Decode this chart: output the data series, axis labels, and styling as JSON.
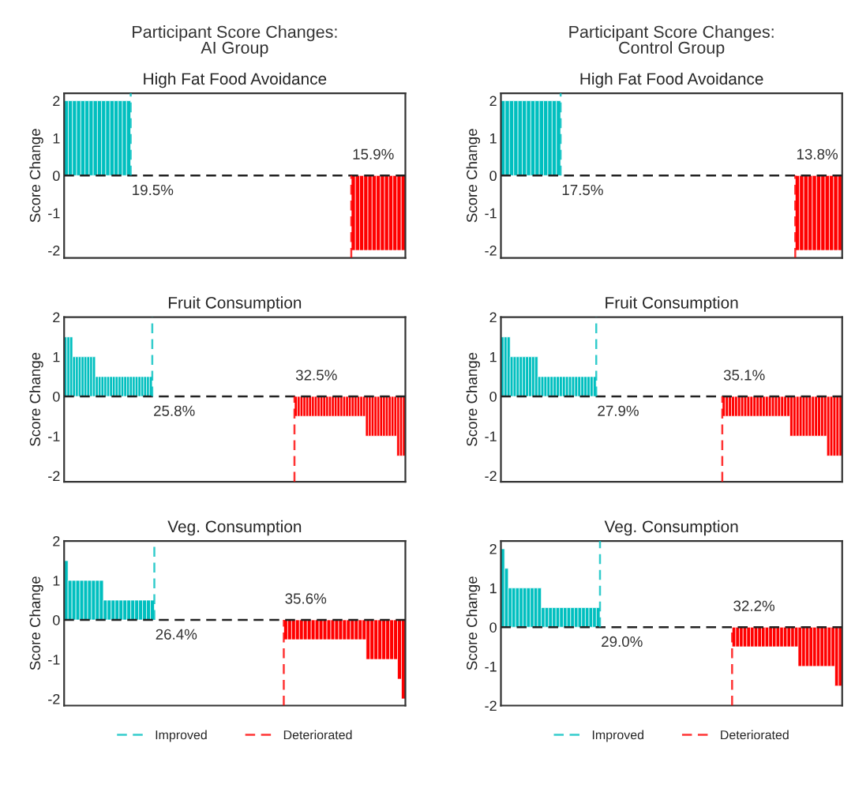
{
  "chart_data": [
    {
      "type": "bar",
      "title": "Participant Score Changes:\nAI Group",
      "subtitle": "High Fat Food Avoidance",
      "ylabel": "Score Change",
      "ylim": [
        -2.2,
        2.2
      ],
      "yticks": [
        -2,
        -1,
        0,
        1,
        2
      ],
      "tick_labels": "y",
      "grid": false,
      "categories": [
        null,
        null,
        null,
        null,
        null,
        null,
        null,
        null,
        null,
        null,
        null,
        null,
        null,
        null,
        null,
        null,
        null,
        null,
        null,
        null,
        null,
        null,
        null,
        null,
        null,
        null,
        null,
        null,
        null,
        null,
        null,
        null,
        null,
        null,
        null,
        null,
        null,
        null,
        null,
        null,
        null,
        null,
        null,
        null,
        null,
        null,
        null,
        null,
        null,
        null,
        null,
        null,
        null,
        null,
        null,
        null,
        null,
        null,
        null,
        null,
        null,
        null,
        null,
        null,
        null,
        null,
        null,
        null,
        null,
        null,
        null,
        null,
        null,
        null,
        null,
        null,
        null,
        null,
        null,
        null,
        null,
        null
      ],
      "series": [
        {
          "color": "#00bfbf",
          "values": [
            2,
            2,
            2,
            2,
            2,
            2,
            2,
            2,
            2,
            2,
            2,
            2,
            2,
            2,
            2,
            2,
            null,
            null,
            null,
            null,
            null,
            null,
            null,
            null,
            null,
            null,
            null,
            null,
            null,
            null,
            null,
            null,
            null,
            null,
            null,
            null,
            null,
            null,
            null,
            null,
            null,
            null,
            null,
            null,
            null,
            null,
            null,
            null,
            null,
            null,
            null,
            null,
            null,
            null,
            null,
            null,
            null,
            null,
            null,
            null,
            null,
            null,
            null,
            null,
            null,
            null,
            null,
            null,
            null,
            null,
            null,
            null,
            null,
            null,
            null,
            null,
            null,
            null,
            null,
            null,
            null,
            null
          ]
        },
        {
          "color": "#ff0000",
          "values": [
            null,
            null,
            null,
            null,
            null,
            null,
            null,
            null,
            null,
            null,
            null,
            null,
            null,
            null,
            null,
            null,
            null,
            null,
            null,
            null,
            null,
            null,
            null,
            null,
            null,
            null,
            null,
            null,
            null,
            null,
            null,
            null,
            null,
            null,
            null,
            null,
            null,
            null,
            null,
            null,
            null,
            null,
            null,
            null,
            null,
            null,
            null,
            null,
            null,
            null,
            null,
            null,
            null,
            null,
            null,
            null,
            null,
            null,
            null,
            null,
            null,
            null,
            null,
            null,
            null,
            null,
            null,
            null,
            null,
            -2,
            -2,
            -2,
            -2,
            -2,
            -2,
            -2,
            -2,
            -2,
            -2,
            -2,
            -2,
            -2
          ]
        }
      ],
      "ref_lines": [
        {
          "axis": "y",
          "value": 0,
          "color": "#222222",
          "line_style": "dashed"
        }
      ],
      "annotations": [
        "19.5%",
        "15.9%"
      ]
    },
    {
      "type": "bar",
      "title": "Participant Score Changes:\nControl Group",
      "subtitle": "High Fat Food Avoidance",
      "ylabel": "Score Change",
      "ylim": [
        -2.2,
        2.2
      ],
      "yticks": [
        -2,
        -1,
        0,
        1,
        2
      ],
      "tick_labels": "y",
      "grid": false,
      "categories": [
        null,
        null,
        null,
        null,
        null,
        null,
        null,
        null,
        null,
        null,
        null,
        null,
        null,
        null,
        null,
        null,
        null,
        null,
        null,
        null,
        null,
        null,
        null,
        null,
        null,
        null,
        null,
        null,
        null,
        null,
        null,
        null,
        null,
        null,
        null,
        null,
        null,
        null,
        null,
        null,
        null,
        null,
        null,
        null,
        null,
        null,
        null,
        null,
        null,
        null,
        null,
        null,
        null,
        null,
        null,
        null,
        null,
        null,
        null,
        null,
        null,
        null,
        null,
        null,
        null,
        null,
        null,
        null,
        null,
        null,
        null,
        null,
        null,
        null,
        null,
        null,
        null,
        null,
        null,
        null
      ],
      "series": [
        {
          "color": "#00bfbf",
          "values": [
            2,
            2,
            2,
            2,
            2,
            2,
            2,
            2,
            2,
            2,
            2,
            2,
            2,
            2,
            null,
            null,
            null,
            null,
            null,
            null,
            null,
            null,
            null,
            null,
            null,
            null,
            null,
            null,
            null,
            null,
            null,
            null,
            null,
            null,
            null,
            null,
            null,
            null,
            null,
            null,
            null,
            null,
            null,
            null,
            null,
            null,
            null,
            null,
            null,
            null,
            null,
            null,
            null,
            null,
            null,
            null,
            null,
            null,
            null,
            null,
            null,
            null,
            null,
            null,
            null,
            null,
            null,
            null,
            null,
            null,
            null,
            null,
            null,
            null,
            null,
            null,
            null,
            null,
            null,
            null
          ]
        },
        {
          "color": "#ff0000",
          "values": [
            null,
            null,
            null,
            null,
            null,
            null,
            null,
            null,
            null,
            null,
            null,
            null,
            null,
            null,
            null,
            null,
            null,
            null,
            null,
            null,
            null,
            null,
            null,
            null,
            null,
            null,
            null,
            null,
            null,
            null,
            null,
            null,
            null,
            null,
            null,
            null,
            null,
            null,
            null,
            null,
            null,
            null,
            null,
            null,
            null,
            null,
            null,
            null,
            null,
            null,
            null,
            null,
            null,
            null,
            null,
            null,
            null,
            null,
            null,
            null,
            null,
            null,
            null,
            null,
            null,
            null,
            null,
            null,
            null,
            -2,
            -2,
            -2,
            -2,
            -2,
            -2,
            -2,
            -2,
            -2,
            -2,
            -2
          ]
        }
      ],
      "ref_lines": [
        {
          "axis": "y",
          "value": 0,
          "color": "#222222",
          "line_style": "dashed"
        }
      ],
      "annotations": [
        "17.5%",
        "13.8%"
      ]
    },
    {
      "type": "bar",
      "title": "Fruit Consumption",
      "ylabel": "Score Change",
      "ylim": [
        -2.15,
        2
      ],
      "yticks": [
        -2,
        -1,
        0,
        1,
        2
      ],
      "tick_labels": "y",
      "grid": false,
      "categories": [
        null,
        null,
        null,
        null,
        null,
        null,
        null,
        null,
        null,
        null,
        null,
        null,
        null,
        null,
        null,
        null,
        null,
        null,
        null,
        null,
        null,
        null,
        null,
        null,
        null,
        null,
        null,
        null,
        null,
        null,
        null,
        null,
        null,
        null,
        null,
        null,
        null,
        null,
        null,
        null,
        null,
        null,
        null,
        null,
        null,
        null,
        null,
        null,
        null,
        null,
        null,
        null,
        null,
        null,
        null,
        null,
        null,
        null,
        null,
        null,
        null,
        null,
        null,
        null,
        null,
        null,
        null,
        null,
        null,
        null,
        null,
        null,
        null,
        null,
        null,
        null,
        null,
        null,
        null,
        null,
        null,
        null,
        null,
        null,
        null,
        null,
        null,
        null,
        null,
        null,
        null,
        null,
        null,
        null,
        null,
        null,
        null,
        null,
        null,
        null,
        null,
        null,
        null,
        null,
        null,
        null,
        null,
        null,
        null,
        null,
        null,
        null,
        null,
        null,
        null,
        null,
        null,
        null,
        null,
        null
      ],
      "series": [
        {
          "color": "#00bfbf",
          "values": [
            1.5,
            1.5,
            1.5,
            1,
            1,
            1,
            1,
            1,
            1,
            1,
            1,
            0.5,
            0.5,
            0.5,
            0.5,
            0.5,
            0.5,
            0.5,
            0.5,
            0.5,
            0.5,
            0.5,
            0.5,
            0.5,
            0.5,
            0.5,
            0.5,
            0.5,
            0.5,
            0.5,
            0.5,
            null,
            null,
            null,
            null,
            null,
            null,
            null,
            null,
            null,
            null,
            null,
            null,
            null,
            null,
            null,
            null,
            null,
            null,
            null,
            null,
            null,
            null,
            null,
            null,
            null,
            null,
            null,
            null,
            null,
            null,
            null,
            null,
            null,
            null,
            null,
            null,
            null,
            null,
            null,
            null,
            null,
            null,
            null,
            null,
            null,
            null,
            null,
            null,
            null,
            null,
            null,
            null,
            null,
            null,
            null,
            null,
            null,
            null,
            null,
            null,
            null,
            null,
            null,
            null,
            null,
            null,
            null,
            null,
            null,
            null,
            null,
            null,
            null,
            null,
            null,
            null,
            null,
            null,
            null,
            null,
            null,
            null,
            null,
            null,
            null,
            null,
            null,
            null,
            null
          ]
        },
        {
          "color": "#ff0000",
          "values": [
            null,
            null,
            null,
            null,
            null,
            null,
            null,
            null,
            null,
            null,
            null,
            null,
            null,
            null,
            null,
            null,
            null,
            null,
            null,
            null,
            null,
            null,
            null,
            null,
            null,
            null,
            null,
            null,
            null,
            null,
            null,
            null,
            null,
            null,
            null,
            null,
            null,
            null,
            null,
            null,
            null,
            null,
            null,
            null,
            null,
            null,
            null,
            null,
            null,
            null,
            null,
            null,
            null,
            null,
            null,
            null,
            null,
            null,
            null,
            null,
            null,
            null,
            null,
            null,
            null,
            null,
            null,
            null,
            null,
            null,
            null,
            null,
            null,
            null,
            null,
            null,
            null,
            null,
            null,
            null,
            null,
            -0.5,
            -0.5,
            -0.5,
            -0.5,
            -0.5,
            -0.5,
            -0.5,
            -0.5,
            -0.5,
            -0.5,
            -0.5,
            -0.5,
            -0.5,
            -0.5,
            -0.5,
            -0.5,
            -0.5,
            -0.5,
            -0.5,
            -0.5,
            -0.5,
            -0.5,
            -0.5,
            -0.5,
            -0.5,
            -1,
            -1,
            -1,
            -1,
            -1,
            -1,
            -1,
            -1,
            -1,
            -1,
            -1,
            -1.5,
            -1.5,
            -1.5
          ]
        }
      ],
      "ref_lines": [
        {
          "axis": "y",
          "value": 0,
          "color": "#222222",
          "line_style": "dashed"
        }
      ],
      "annotations": [
        "25.8%",
        "32.5%"
      ]
    },
    {
      "type": "bar",
      "title": "Fruit Consumption",
      "ylabel": "Score Change",
      "ylim": [
        -2.15,
        2
      ],
      "yticks": [
        -2,
        -1,
        0,
        1,
        2
      ],
      "tick_labels": "y",
      "grid": false,
      "categories": [
        null,
        null,
        null,
        null,
        null,
        null,
        null,
        null,
        null,
        null,
        null,
        null,
        null,
        null,
        null,
        null,
        null,
        null,
        null,
        null,
        null,
        null,
        null,
        null,
        null,
        null,
        null,
        null,
        null,
        null,
        null,
        null,
        null,
        null,
        null,
        null,
        null,
        null,
        null,
        null,
        null,
        null,
        null,
        null,
        null,
        null,
        null,
        null,
        null,
        null,
        null,
        null,
        null,
        null,
        null,
        null,
        null,
        null,
        null,
        null,
        null,
        null,
        null,
        null,
        null,
        null,
        null,
        null,
        null,
        null,
        null,
        null,
        null,
        null,
        null,
        null,
        null,
        null,
        null,
        null,
        null,
        null,
        null,
        null,
        null,
        null,
        null,
        null,
        null,
        null,
        null,
        null,
        null,
        null,
        null,
        null,
        null,
        null,
        null,
        null,
        null,
        null,
        null,
        null,
        null,
        null,
        null,
        null,
        null,
        null,
        null
      ],
      "series": [
        {
          "color": "#00bfbf",
          "values": [
            1.5,
            1.5,
            1.5,
            1,
            1,
            1,
            1,
            1,
            1,
            1,
            1,
            1,
            0.5,
            0.5,
            0.5,
            0.5,
            0.5,
            0.5,
            0.5,
            0.5,
            0.5,
            0.5,
            0.5,
            0.5,
            0.5,
            0.5,
            0.5,
            0.5,
            0.5,
            0.5,
            0.5,
            null,
            null,
            null,
            null,
            null,
            null,
            null,
            null,
            null,
            null,
            null,
            null,
            null,
            null,
            null,
            null,
            null,
            null,
            null,
            null,
            null,
            null,
            null,
            null,
            null,
            null,
            null,
            null,
            null,
            null,
            null,
            null,
            null,
            null,
            null,
            null,
            null,
            null,
            null,
            null,
            null,
            null,
            null,
            null,
            null,
            null,
            null,
            null,
            null,
            null,
            null,
            null,
            null,
            null,
            null,
            null,
            null,
            null,
            null,
            null,
            null,
            null,
            null,
            null,
            null,
            null,
            null,
            null,
            null,
            null,
            null,
            null,
            null,
            null,
            null,
            null,
            null,
            null,
            null,
            null
          ]
        },
        {
          "color": "#ff0000",
          "values": [
            null,
            null,
            null,
            null,
            null,
            null,
            null,
            null,
            null,
            null,
            null,
            null,
            null,
            null,
            null,
            null,
            null,
            null,
            null,
            null,
            null,
            null,
            null,
            null,
            null,
            null,
            null,
            null,
            null,
            null,
            null,
            null,
            null,
            null,
            null,
            null,
            null,
            null,
            null,
            null,
            null,
            null,
            null,
            null,
            null,
            null,
            null,
            null,
            null,
            null,
            null,
            null,
            null,
            null,
            null,
            null,
            null,
            null,
            null,
            null,
            null,
            null,
            null,
            null,
            null,
            null,
            null,
            null,
            null,
            null,
            null,
            null,
            -0.5,
            -0.5,
            -0.5,
            -0.5,
            -0.5,
            -0.5,
            -0.5,
            -0.5,
            -0.5,
            -0.5,
            -0.5,
            -0.5,
            -0.5,
            -0.5,
            -0.5,
            -0.5,
            -0.5,
            -0.5,
            -0.5,
            -0.5,
            -0.5,
            -0.5,
            -1,
            -1,
            -1,
            -1,
            -1,
            -1,
            -1,
            -1,
            -1,
            -1,
            -1,
            -1,
            -1.5,
            -1.5,
            -1.5,
            -1.5,
            -1.5
          ]
        }
      ],
      "ref_lines": [
        {
          "axis": "y",
          "value": 0,
          "color": "#222222",
          "line_style": "dashed"
        }
      ],
      "annotations": [
        "27.9%",
        "35.1%"
      ]
    },
    {
      "type": "bar",
      "title": "Veg. Consumption",
      "ylabel": "Score Change",
      "ylim": [
        -2.17,
        2
      ],
      "yticks": [
        -2,
        -1,
        0,
        1,
        2
      ],
      "tick_labels": "y",
      "grid": false,
      "legend": "bottom",
      "categories": [
        null,
        null,
        null,
        null,
        null,
        null,
        null,
        null,
        null,
        null,
        null,
        null,
        null,
        null,
        null,
        null,
        null,
        null,
        null,
        null,
        null,
        null,
        null,
        null,
        null,
        null,
        null,
        null,
        null,
        null,
        null,
        null,
        null,
        null,
        null,
        null,
        null,
        null,
        null,
        null,
        null,
        null,
        null,
        null,
        null,
        null,
        null,
        null,
        null,
        null,
        null,
        null,
        null,
        null,
        null,
        null,
        null,
        null,
        null,
        null,
        null,
        null,
        null,
        null,
        null,
        null,
        null,
        null,
        null,
        null,
        null,
        null,
        null,
        null,
        null,
        null,
        null,
        null,
        null,
        null,
        null,
        null,
        null,
        null,
        null,
        null,
        null
      ],
      "series": [
        {
          "name": "Improved",
          "color": "#00bfbf",
          "values": [
            1.5,
            1,
            1,
            1,
            1,
            1,
            1,
            1,
            1,
            1,
            0.5,
            0.5,
            0.5,
            0.5,
            0.5,
            0.5,
            0.5,
            0.5,
            0.5,
            0.5,
            0.5,
            0.5,
            0.5,
            null,
            null,
            null,
            null,
            null,
            null,
            null,
            null,
            null,
            null,
            null,
            null,
            null,
            null,
            null,
            null,
            null,
            null,
            null,
            null,
            null,
            null,
            null,
            null,
            null,
            null,
            null,
            null,
            null,
            null,
            null,
            null,
            null,
            null,
            null,
            null,
            null,
            null,
            null,
            null,
            null,
            null,
            null,
            null,
            null,
            null,
            null,
            null,
            null,
            null,
            null,
            null,
            null,
            null,
            null,
            null,
            null,
            null,
            null,
            null,
            null,
            null,
            null,
            null
          ]
        },
        {
          "name": "Deteriorated",
          "color": "#ff0000",
          "values": [
            null,
            null,
            null,
            null,
            null,
            null,
            null,
            null,
            null,
            null,
            null,
            null,
            null,
            null,
            null,
            null,
            null,
            null,
            null,
            null,
            null,
            null,
            null,
            null,
            null,
            null,
            null,
            null,
            null,
            null,
            null,
            null,
            null,
            null,
            null,
            null,
            null,
            null,
            null,
            null,
            null,
            null,
            null,
            null,
            null,
            null,
            null,
            null,
            null,
            null,
            null,
            null,
            null,
            null,
            null,
            null,
            -0.5,
            -0.5,
            -0.5,
            -0.5,
            -0.5,
            -0.5,
            -0.5,
            -0.5,
            -0.5,
            -0.5,
            -0.5,
            -0.5,
            -0.5,
            -0.5,
            -0.5,
            -0.5,
            -0.5,
            -0.5,
            -0.5,
            -0.5,
            -0.5,
            -1,
            -1,
            -1,
            -1,
            -1,
            -1,
            -1,
            -1,
            -1.5,
            -2
          ]
        }
      ],
      "ref_lines": [
        {
          "axis": "y",
          "value": 0,
          "color": "#222222",
          "line_style": "dashed"
        }
      ],
      "annotations": [
        "26.4%",
        "35.6%"
      ]
    },
    {
      "type": "bar",
      "title": "Veg. Consumption",
      "ylabel": "Score Change",
      "ylim": [
        -2,
        2.2
      ],
      "yticks": [
        -2,
        -1,
        0,
        1,
        2
      ],
      "tick_labels": "y",
      "grid": false,
      "legend": "bottom",
      "categories": [
        null,
        null,
        null,
        null,
        null,
        null,
        null,
        null,
        null,
        null,
        null,
        null,
        null,
        null,
        null,
        null,
        null,
        null,
        null,
        null,
        null,
        null,
        null,
        null,
        null,
        null,
        null,
        null,
        null,
        null,
        null,
        null,
        null,
        null,
        null,
        null,
        null,
        null,
        null,
        null,
        null,
        null,
        null,
        null,
        null,
        null,
        null,
        null,
        null,
        null,
        null,
        null,
        null,
        null,
        null,
        null,
        null,
        null,
        null,
        null,
        null,
        null,
        null,
        null,
        null,
        null,
        null,
        null,
        null,
        null,
        null,
        null,
        null,
        null,
        null,
        null,
        null,
        null,
        null,
        null,
        null,
        null,
        null,
        null,
        null,
        null,
        null,
        null,
        null,
        null,
        null,
        null,
        null
      ],
      "series": [
        {
          "name": "Improved",
          "color": "#00bfbf",
          "values": [
            2,
            1.5,
            1,
            1,
            1,
            1,
            1,
            1,
            1,
            1,
            1,
            0.5,
            0.5,
            0.5,
            0.5,
            0.5,
            0.5,
            0.5,
            0.5,
            0.5,
            0.5,
            0.5,
            0.5,
            0.5,
            0.5,
            0.5,
            0.5,
            null,
            null,
            null,
            null,
            null,
            null,
            null,
            null,
            null,
            null,
            null,
            null,
            null,
            null,
            null,
            null,
            null,
            null,
            null,
            null,
            null,
            null,
            null,
            null,
            null,
            null,
            null,
            null,
            null,
            null,
            null,
            null,
            null,
            null,
            null,
            null,
            null,
            null,
            null,
            null,
            null,
            null,
            null,
            null,
            null,
            null,
            null,
            null,
            null,
            null,
            null,
            null,
            null,
            null,
            null,
            null,
            null,
            null,
            null,
            null,
            null,
            null,
            null,
            null,
            null,
            null
          ]
        },
        {
          "name": "Deteriorated",
          "color": "#ff0000",
          "values": [
            null,
            null,
            null,
            null,
            null,
            null,
            null,
            null,
            null,
            null,
            null,
            null,
            null,
            null,
            null,
            null,
            null,
            null,
            null,
            null,
            null,
            null,
            null,
            null,
            null,
            null,
            null,
            null,
            null,
            null,
            null,
            null,
            null,
            null,
            null,
            null,
            null,
            null,
            null,
            null,
            null,
            null,
            null,
            null,
            null,
            null,
            null,
            null,
            null,
            null,
            null,
            null,
            null,
            null,
            null,
            null,
            null,
            null,
            null,
            null,
            null,
            null,
            null,
            -0.5,
            -0.5,
            -0.5,
            -0.5,
            -0.5,
            -0.5,
            -0.5,
            -0.5,
            -0.5,
            -0.5,
            -0.5,
            -0.5,
            -0.5,
            -0.5,
            -0.5,
            -0.5,
            -0.5,
            -0.5,
            -1,
            -1,
            -1,
            -1,
            -1,
            -1,
            -1,
            -1,
            -1,
            -1,
            -1.5,
            -1.5
          ]
        }
      ],
      "ref_lines": [
        {
          "axis": "y",
          "value": 0,
          "color": "#222222",
          "line_style": "dashed"
        }
      ],
      "annotations": [
        "29.0%",
        "32.2%"
      ]
    }
  ]
}
